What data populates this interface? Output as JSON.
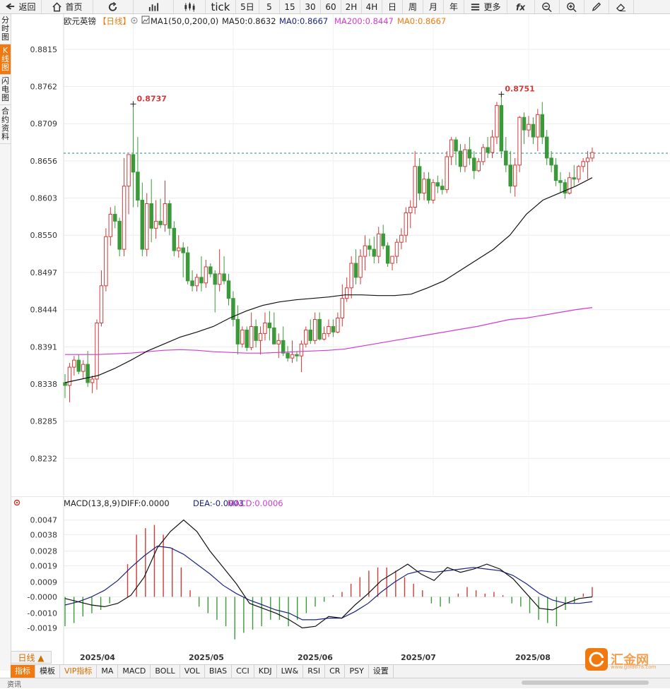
{
  "toolbar": {
    "items": [
      {
        "name": "back-button",
        "icon": "back-arrow-icon",
        "label": "返回",
        "w": 58
      },
      {
        "name": "home-button",
        "icon": "home-icon",
        "label": "首页",
        "w": 72
      },
      {
        "name": "refresh-button",
        "icon": "refresh-icon",
        "label": "",
        "w": 56
      },
      {
        "name": "bar-chart-button",
        "icon": "bar-chart-icon",
        "label": "",
        "w": 56
      },
      {
        "name": "candle-chart-button",
        "icon": "candlestick-icon",
        "label": "",
        "w": 44
      },
      {
        "name": "tick-button",
        "icon": "",
        "label": "tick",
        "w": 42
      },
      {
        "name": "5day-button",
        "icon": "",
        "label": "5日",
        "w": 32
      },
      {
        "name": "5min-button",
        "icon": "",
        "label": "5",
        "w": 28
      },
      {
        "name": "15min-button",
        "icon": "",
        "label": "15",
        "w": 28
      },
      {
        "name": "30min-button",
        "icon": "",
        "label": "30",
        "w": 28
      },
      {
        "name": "60min-button",
        "icon": "",
        "label": "60",
        "w": 28
      },
      {
        "name": "2h-button",
        "icon": "",
        "label": "2H",
        "w": 28
      },
      {
        "name": "4h-button",
        "icon": "",
        "label": "4H",
        "w": 28
      },
      {
        "name": "day-button",
        "icon": "",
        "label": "日",
        "w": 28
      },
      {
        "name": "week-button",
        "icon": "",
        "label": "周",
        "w": 28
      },
      {
        "name": "month-button",
        "icon": "",
        "label": "月",
        "w": 28
      },
      {
        "name": "year-button",
        "icon": "",
        "label": "年",
        "w": 28
      },
      {
        "name": "more-button",
        "icon": "menu-icon",
        "label": "更多",
        "w": 60
      },
      {
        "name": "formula-button",
        "icon": "fx-icon",
        "label": "fx",
        "w": 38
      },
      {
        "name": "zoom-out-button",
        "icon": "zoom-out-icon",
        "label": "−",
        "w": 34
      },
      {
        "name": "zoom-in-button",
        "icon": "zoom-in-icon",
        "label": "+",
        "w": 34
      },
      {
        "name": "draw-button",
        "icon": "pencil-icon",
        "label": "✎",
        "w": 34
      },
      {
        "name": "delete-drawing-button",
        "icon": "eraser-icon",
        "label": "⌫",
        "w": 34
      }
    ]
  },
  "sidebar": {
    "tabs": [
      {
        "label": "分时图",
        "active": false
      },
      {
        "label": "K线图",
        "active": true
      },
      {
        "label": "闪电图",
        "active": false
      },
      {
        "label": "合约资料",
        "active": false
      }
    ]
  },
  "main": {
    "legend": {
      "symbol": "欧元英镑",
      "period": "【日线】",
      "ma1": "MA1(50,0,200,0)",
      "ma50": "MA50:0.8632",
      "ma0a": "MA0:0.8667",
      "ma200": "MA200:0.8447",
      "ma0b": "MA0:0.8667"
    },
    "high_labels": [
      "0.8737",
      "0.8751"
    ]
  },
  "macd": {
    "title": "MACD(13,8,9)",
    "diff": "DIFF:0.0000",
    "dea": "DEA:-0.0003",
    "macd": "MACD:0.0006"
  },
  "x_axis": [
    "2025/04",
    "2025/05",
    "2025/06",
    "2025/07",
    "2025/08"
  ],
  "period_button": "日线 ▲",
  "bottom_tabs": [
    "指标",
    "模板",
    "VIP指标",
    "MA",
    "MACD",
    "BOLL",
    "VOL",
    "BIAS",
    "CCI",
    "KDJ",
    "LW&",
    "RSI",
    "CR",
    "PSY",
    "设置"
  ],
  "logo": {
    "text": "汇金网",
    "url": "www.gold678.com"
  },
  "footer": {
    "left": "资讯"
  },
  "colors": {
    "up": "#d23a3a",
    "down": "#3a9a3a",
    "ma50": "#111111",
    "ma200": "#d23ad2",
    "diff": "#111111",
    "dea": "#1a237e",
    "accent": "#f07a10"
  },
  "chart_data": [
    {
      "type": "candlestick",
      "title": "欧元英镑【日线】",
      "y_ticks": [
        0.8815,
        0.8762,
        0.8709,
        0.8656,
        0.8603,
        0.855,
        0.8497,
        0.8444,
        0.8391,
        0.8338,
        0.8285,
        0.8232
      ],
      "ylim": [
        0.8179,
        0.8842
      ],
      "x_labels": [
        "2025/04",
        "2025/05",
        "2025/06",
        "2025/07",
        "2025/08"
      ],
      "current_line": 0.8667,
      "candles": [
        [
          0.834,
          0.8352,
          0.8318,
          0.8336
        ],
        [
          0.8336,
          0.8368,
          0.8312,
          0.8362
        ],
        [
          0.8362,
          0.8378,
          0.835,
          0.8372
        ],
        [
          0.8372,
          0.838,
          0.8352,
          0.8356
        ],
        [
          0.8356,
          0.8372,
          0.8345,
          0.8366
        ],
        [
          0.8366,
          0.8385,
          0.8334,
          0.834
        ],
        [
          0.834,
          0.835,
          0.8325,
          0.8345
        ],
        [
          0.8345,
          0.843,
          0.833,
          0.8425
        ],
        [
          0.8425,
          0.85,
          0.842,
          0.8478
        ],
        [
          0.8478,
          0.856,
          0.847,
          0.8548
        ],
        [
          0.8548,
          0.859,
          0.8535,
          0.858
        ],
        [
          0.858,
          0.8592,
          0.856,
          0.857
        ],
        [
          0.857,
          0.8575,
          0.852,
          0.853
        ],
        [
          0.853,
          0.866,
          0.852,
          0.862
        ],
        [
          0.862,
          0.8665,
          0.858,
          0.8665
        ],
        [
          0.8665,
          0.8737,
          0.859,
          0.864
        ],
        [
          0.864,
          0.869,
          0.859,
          0.86
        ],
        [
          0.86,
          0.8625,
          0.852,
          0.853
        ],
        [
          0.853,
          0.861,
          0.852,
          0.8595
        ],
        [
          0.8595,
          0.863,
          0.854,
          0.856
        ],
        [
          0.856,
          0.86,
          0.8545,
          0.857
        ],
        [
          0.857,
          0.8602,
          0.856,
          0.8565
        ],
        [
          0.8565,
          0.8628,
          0.8555,
          0.8595
        ],
        [
          0.8595,
          0.86,
          0.855,
          0.856
        ],
        [
          0.856,
          0.857,
          0.852,
          0.8528
        ],
        [
          0.8528,
          0.855,
          0.8518,
          0.8532
        ],
        [
          0.8532,
          0.854,
          0.849,
          0.8525
        ],
        [
          0.8525,
          0.8534,
          0.848,
          0.8485
        ],
        [
          0.8485,
          0.85,
          0.847,
          0.8478
        ],
        [
          0.8478,
          0.8495,
          0.847,
          0.849
        ],
        [
          0.849,
          0.852,
          0.847,
          0.8482
        ],
        [
          0.8482,
          0.8515,
          0.8475,
          0.8505
        ],
        [
          0.8505,
          0.851,
          0.849,
          0.8495
        ],
        [
          0.8495,
          0.85,
          0.844,
          0.848
        ],
        [
          0.848,
          0.853,
          0.847,
          0.8495
        ],
        [
          0.8495,
          0.852,
          0.848,
          0.8485
        ],
        [
          0.8485,
          0.8495,
          0.845,
          0.846
        ],
        [
          0.846,
          0.847,
          0.842,
          0.843
        ],
        [
          0.843,
          0.845,
          0.838,
          0.8395
        ],
        [
          0.8395,
          0.842,
          0.839,
          0.8415
        ],
        [
          0.8415,
          0.842,
          0.8385,
          0.839
        ],
        [
          0.839,
          0.844,
          0.8386,
          0.842
        ],
        [
          0.842,
          0.843,
          0.839,
          0.84
        ],
        [
          0.84,
          0.842,
          0.838,
          0.841
        ],
        [
          0.841,
          0.844,
          0.84,
          0.8425
        ],
        [
          0.8425,
          0.8442,
          0.84,
          0.8418
        ],
        [
          0.8418,
          0.844,
          0.84,
          0.8395
        ],
        [
          0.8395,
          0.841,
          0.8375,
          0.84
        ],
        [
          0.84,
          0.842,
          0.8378,
          0.8382
        ],
        [
          0.8382,
          0.8392,
          0.837,
          0.8375
        ],
        [
          0.8375,
          0.84,
          0.8368,
          0.838
        ],
        [
          0.838,
          0.8385,
          0.837,
          0.8378
        ],
        [
          0.8378,
          0.84,
          0.8355,
          0.8395
        ],
        [
          0.8395,
          0.842,
          0.839,
          0.8415
        ],
        [
          0.8415,
          0.843,
          0.8395,
          0.84
        ],
        [
          0.84,
          0.844,
          0.8395,
          0.843
        ],
        [
          0.843,
          0.844,
          0.84,
          0.8402
        ],
        [
          0.8402,
          0.842,
          0.84,
          0.841
        ],
        [
          0.841,
          0.843,
          0.8405,
          0.842
        ],
        [
          0.842,
          0.843,
          0.8405,
          0.8412
        ],
        [
          0.8412,
          0.844,
          0.841,
          0.8432
        ],
        [
          0.8432,
          0.848,
          0.842,
          0.846
        ],
        [
          0.846,
          0.849,
          0.8455,
          0.8475
        ],
        [
          0.8475,
          0.852,
          0.846,
          0.851
        ],
        [
          0.851,
          0.853,
          0.848,
          0.849
        ],
        [
          0.849,
          0.853,
          0.848,
          0.852
        ],
        [
          0.852,
          0.855,
          0.85,
          0.8535
        ],
        [
          0.8535,
          0.8545,
          0.852,
          0.853
        ],
        [
          0.853,
          0.8548,
          0.851,
          0.852
        ],
        [
          0.852,
          0.8562,
          0.851,
          0.8552
        ],
        [
          0.8552,
          0.8565,
          0.853,
          0.8535
        ],
        [
          0.8535,
          0.854,
          0.8505,
          0.851
        ],
        [
          0.851,
          0.852,
          0.85,
          0.852
        ],
        [
          0.852,
          0.8545,
          0.851,
          0.854
        ],
        [
          0.854,
          0.856,
          0.853,
          0.855
        ],
        [
          0.855,
          0.859,
          0.854,
          0.8582
        ],
        [
          0.8582,
          0.86,
          0.856,
          0.859
        ],
        [
          0.859,
          0.867,
          0.858,
          0.8648
        ],
        [
          0.8648,
          0.866,
          0.86,
          0.861
        ],
        [
          0.861,
          0.864,
          0.86,
          0.863
        ],
        [
          0.863,
          0.864,
          0.8595,
          0.86
        ],
        [
          0.86,
          0.863,
          0.8595,
          0.8625
        ],
        [
          0.8625,
          0.8635,
          0.861,
          0.862
        ],
        [
          0.862,
          0.863,
          0.8608,
          0.8615
        ],
        [
          0.8615,
          0.867,
          0.861,
          0.8662
        ],
        [
          0.8662,
          0.869,
          0.865,
          0.8686
        ],
        [
          0.8686,
          0.869,
          0.865,
          0.867
        ],
        [
          0.867,
          0.868,
          0.864,
          0.8648
        ],
        [
          0.8648,
          0.868,
          0.864,
          0.8672
        ],
        [
          0.8672,
          0.869,
          0.865,
          0.866
        ],
        [
          0.866,
          0.867,
          0.863,
          0.8642
        ],
        [
          0.8642,
          0.866,
          0.864,
          0.8655
        ],
        [
          0.8655,
          0.868,
          0.865,
          0.8675
        ],
        [
          0.8675,
          0.869,
          0.866,
          0.8668
        ],
        [
          0.8668,
          0.87,
          0.866,
          0.869
        ],
        [
          0.869,
          0.874,
          0.868,
          0.8735
        ],
        [
          0.8735,
          0.8751,
          0.866,
          0.867
        ],
        [
          0.867,
          0.869,
          0.864,
          0.865
        ],
        [
          0.865,
          0.867,
          0.861,
          0.862
        ],
        [
          0.862,
          0.866,
          0.8605,
          0.865
        ],
        [
          0.865,
          0.872,
          0.864,
          0.8718
        ],
        [
          0.8718,
          0.8725,
          0.868,
          0.87
        ],
        [
          0.87,
          0.872,
          0.869,
          0.8708
        ],
        [
          0.8708,
          0.8718,
          0.868,
          0.869
        ],
        [
          0.869,
          0.873,
          0.867,
          0.8722
        ],
        [
          0.8722,
          0.874,
          0.868,
          0.869
        ],
        [
          0.869,
          0.87,
          0.865,
          0.866
        ],
        [
          0.866,
          0.867,
          0.864,
          0.865
        ],
        [
          0.865,
          0.866,
          0.862,
          0.8628
        ],
        [
          0.8628,
          0.864,
          0.861,
          0.8625
        ],
        [
          0.8625,
          0.863,
          0.8602,
          0.861
        ],
        [
          0.861,
          0.864,
          0.8608,
          0.8632
        ],
        [
          0.8632,
          0.865,
          0.862,
          0.863
        ],
        [
          0.863,
          0.865,
          0.8625,
          0.8648
        ],
        [
          0.8648,
          0.866,
          0.864,
          0.8655
        ],
        [
          0.8655,
          0.867,
          0.863,
          0.866
        ],
        [
          0.866,
          0.8675,
          0.8655,
          0.8668
        ]
      ],
      "ma50": [
        0.834,
        0.8345,
        0.835,
        0.836,
        0.8372,
        0.8385,
        0.8395,
        0.8405,
        0.8412,
        0.842,
        0.8432,
        0.8442,
        0.845,
        0.8455,
        0.8458,
        0.846,
        0.8462,
        0.8465,
        0.8465,
        0.8464,
        0.8464,
        0.8466,
        0.8475,
        0.8485,
        0.85,
        0.8515,
        0.853,
        0.855,
        0.858,
        0.86,
        0.861,
        0.862,
        0.8632
      ],
      "ma200": [
        0.838,
        0.838,
        0.838,
        0.8381,
        0.8382,
        0.8384,
        0.8386,
        0.8387,
        0.8386,
        0.8384,
        0.8383,
        0.8382,
        0.8382,
        0.8383,
        0.8384,
        0.8385,
        0.8386,
        0.8388,
        0.8392,
        0.8396,
        0.84,
        0.8404,
        0.8408,
        0.8412,
        0.8416,
        0.842,
        0.8425,
        0.843,
        0.8432,
        0.8436,
        0.844,
        0.8444,
        0.8447
      ],
      "high_marks": [
        {
          "value": 0.8737,
          "index": 15
        },
        {
          "value": 0.8751,
          "index": 96
        }
      ]
    },
    {
      "type": "macd",
      "title": "MACD(13,8,9)",
      "y_ticks": [
        0.0047,
        0.0038,
        0.0028,
        0.0019,
        0.0009,
        -0.0,
        -0.001,
        -0.0019
      ],
      "ylim": [
        -0.0027,
        0.0052
      ],
      "diff": [
        -0.0001,
        -0.0003,
        -0.0005,
        -0.0006,
        -0.0004,
        0.0001,
        0.0012,
        0.003,
        0.004,
        0.0047,
        0.004,
        0.0028,
        0.0018,
        0.0008,
        -0.0004,
        -0.0007,
        -0.001,
        -0.0014,
        -0.0019,
        -0.0018,
        -0.0012,
        -0.0013,
        -0.0005,
        0.0002,
        0.001,
        0.0015,
        0.002,
        0.0014,
        0.001,
        0.0018,
        0.0015,
        0.0017,
        0.002,
        0.0017,
        0.0011,
        0.0002,
        -0.0007,
        -0.0008,
        -0.0004,
        -0.0001,
        -0.0
      ],
      "dea": [
        -0.0005,
        -0.0003,
        0.0,
        0.0004,
        0.001,
        0.0018,
        0.0025,
        0.0031,
        0.003,
        0.0026,
        0.002,
        0.0014,
        0.0007,
        0.0002,
        -0.0002,
        -0.0005,
        -0.0008,
        -0.001,
        -0.0014,
        -0.0014,
        -0.0013,
        -0.0013,
        -0.0009,
        -0.0004,
        0.0003,
        0.0009,
        0.0014,
        0.0016,
        0.0015,
        0.0016,
        0.0017,
        0.0018,
        0.0017,
        0.0016,
        0.0013,
        0.0008,
        0.0002,
        -0.0002,
        -0.0004,
        -0.0004,
        -0.0003
      ],
      "macd_hist": [
        -0.0018,
        -0.0016,
        -0.0012,
        -0.001,
        -0.0008,
        -0.0004,
        0.0,
        0.002,
        0.0038,
        0.0042,
        0.0044,
        0.0038,
        0.003,
        0.0018,
        0.0004,
        -0.0006,
        -0.001,
        -0.0014,
        -0.0018,
        -0.0026,
        -0.0022,
        -0.002,
        -0.0018,
        -0.0014,
        -0.0014,
        -0.0018,
        -0.0014,
        -0.001,
        -0.0006,
        -0.0003,
        0.0001,
        0.0003,
        0.0008,
        0.0012,
        0.0016,
        0.0018,
        0.0018,
        0.0016,
        0.0012,
        0.0008,
        0.0004,
        -0.0004,
        -0.0006,
        -0.0004,
        0.0002,
        0.0006,
        0.0004,
        0.0002,
        0.0003,
        0.0001,
        -0.0004,
        -0.0006,
        -0.001,
        -0.0014,
        -0.0016,
        -0.0018,
        -0.0008,
        -0.0004,
        0.0002,
        0.0006
      ]
    }
  ]
}
